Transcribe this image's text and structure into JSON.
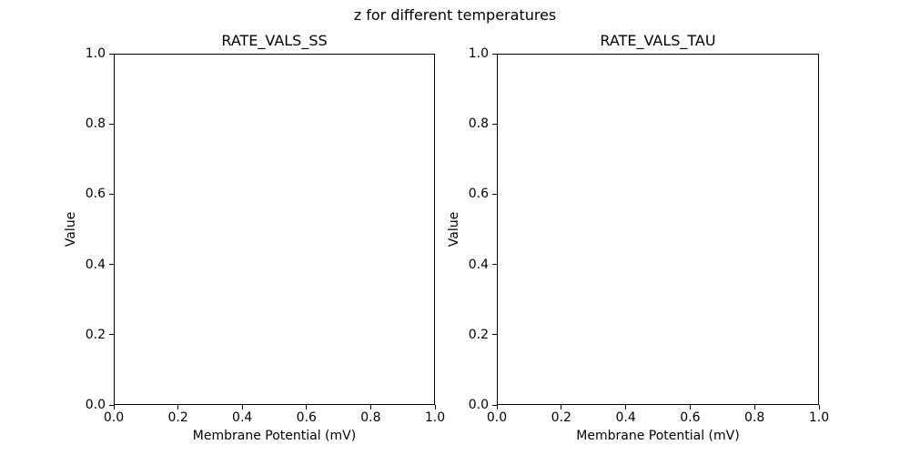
{
  "figure": {
    "suptitle": "z for different temperatures",
    "background_color": "#ffffff",
    "spine_color": "#000000",
    "text_color": "#000000"
  },
  "chart_data": [
    {
      "type": "line",
      "title": "RATE_VALS_SS",
      "xlabel": "Membrane Potential (mV)",
      "ylabel": "Value",
      "xlim": [
        0.0,
        1.0
      ],
      "ylim": [
        0.0,
        1.0
      ],
      "xticks": [
        "0.0",
        "0.2",
        "0.4",
        "0.6",
        "0.8",
        "1.0"
      ],
      "yticks": [
        "0.0",
        "0.2",
        "0.4",
        "0.6",
        "0.8",
        "1.0"
      ],
      "grid": false,
      "legend": null,
      "series": []
    },
    {
      "type": "line",
      "title": "RATE_VALS_TAU",
      "xlabel": "Membrane Potential (mV)",
      "ylabel": "Value",
      "xlim": [
        0.0,
        1.0
      ],
      "ylim": [
        0.0,
        1.0
      ],
      "xticks": [
        "0.0",
        "0.2",
        "0.4",
        "0.6",
        "0.8",
        "1.0"
      ],
      "yticks": [
        "0.0",
        "0.2",
        "0.4",
        "0.6",
        "0.8",
        "1.0"
      ],
      "grid": false,
      "legend": null,
      "series": []
    }
  ]
}
